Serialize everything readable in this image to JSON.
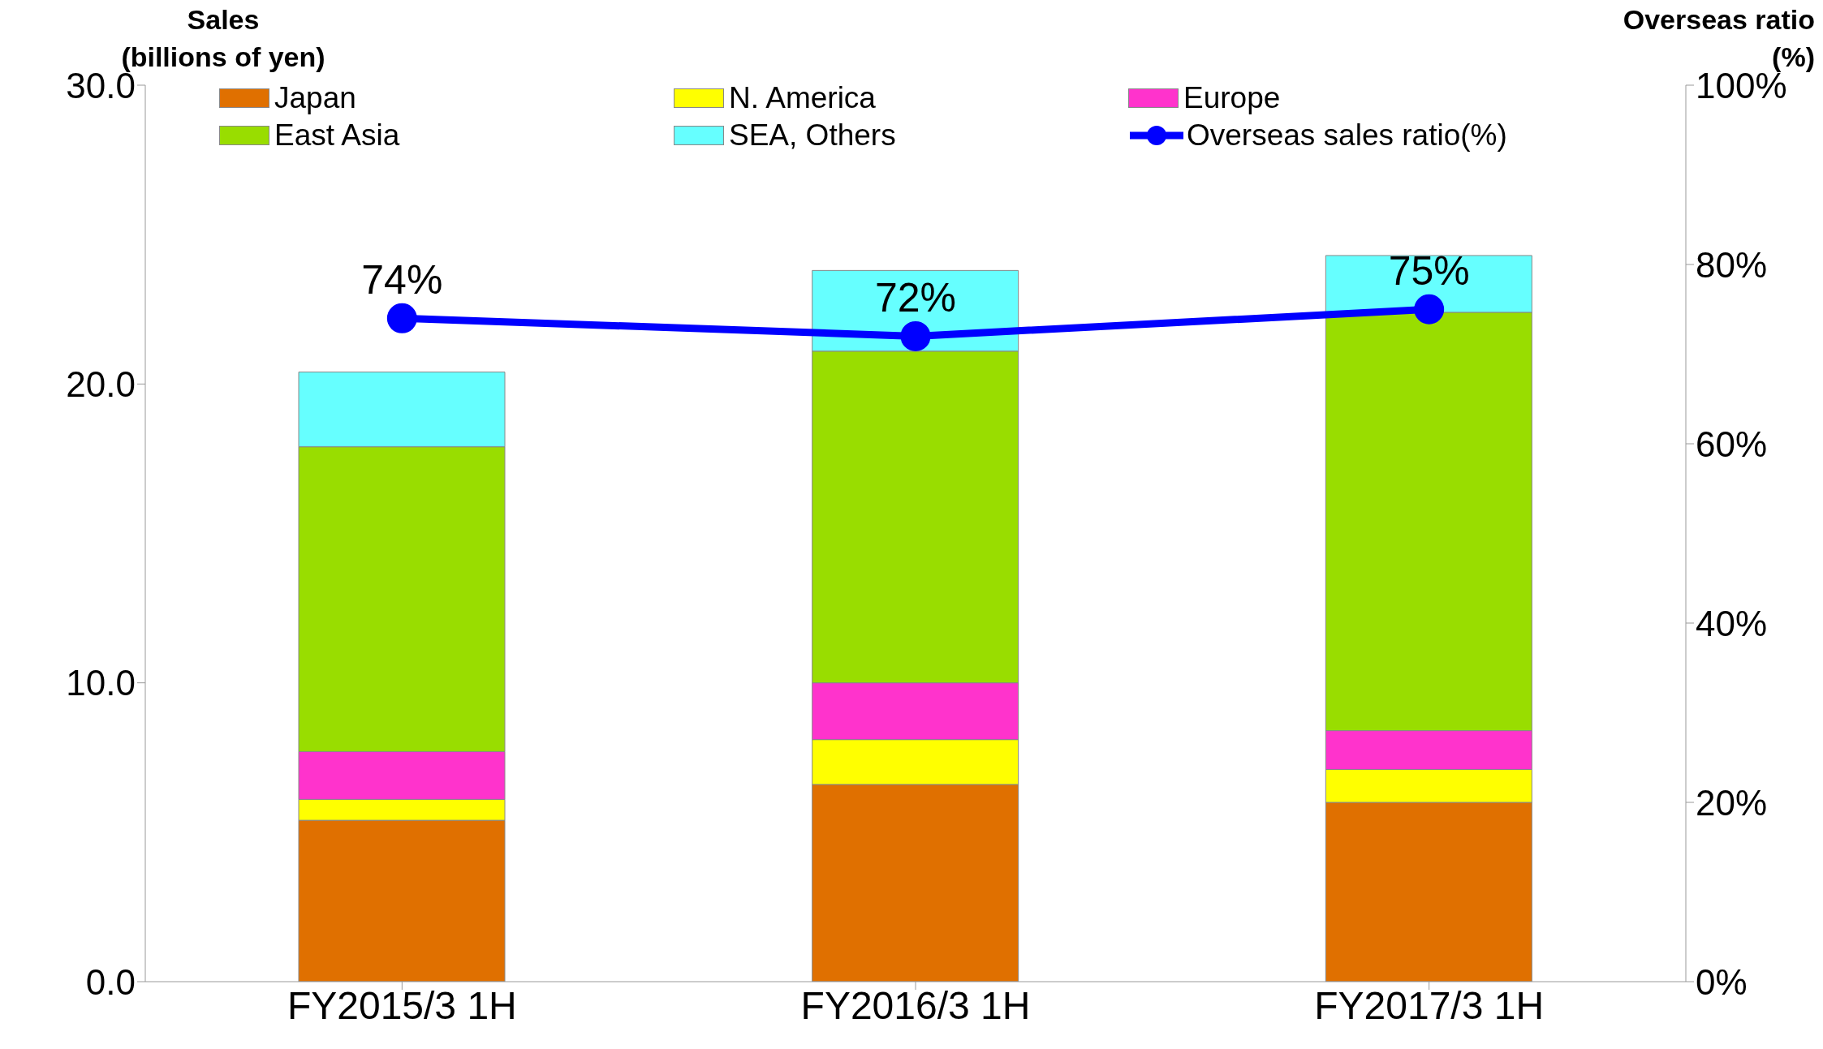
{
  "chart_data": {
    "type": "bar",
    "stacked": true,
    "categories": [
      "FY2015/3 1H",
      "FY2016/3 1H",
      "FY2017/3 1H"
    ],
    "ylabel": "Sales\n(billions of yen)",
    "y2label": "Overseas ratio\n(%)",
    "ylim": [
      0,
      30
    ],
    "yticks": [
      {
        "value": 0,
        "label": "0.0"
      },
      {
        "value": 10,
        "label": "10.0"
      },
      {
        "value": 20,
        "label": "20.0"
      },
      {
        "value": 30,
        "label": "30.0"
      }
    ],
    "y2lim": [
      0,
      100
    ],
    "y2ticks": [
      {
        "value": 0,
        "label": "0%"
      },
      {
        "value": 20,
        "label": "20%"
      },
      {
        "value": 40,
        "label": "40%"
      },
      {
        "value": 60,
        "label": "60%"
      },
      {
        "value": 80,
        "label": "80%"
      },
      {
        "value": 100,
        "label": "100%"
      }
    ],
    "series": [
      {
        "name": "Japan",
        "color": "#e07000",
        "values": [
          5.4,
          6.6,
          6.0
        ]
      },
      {
        "name": "N. America",
        "color": "#ffff00",
        "values": [
          0.7,
          1.5,
          1.1
        ]
      },
      {
        "name": "Europe",
        "color": "#ff33cc",
        "values": [
          1.6,
          1.9,
          1.3
        ]
      },
      {
        "name": "East Asia",
        "color": "#99dd00",
        "values": [
          10.2,
          11.1,
          14.0
        ]
      },
      {
        "name": "SEA, Others",
        "color": "#66ffff",
        "values": [
          2.5,
          2.7,
          1.9
        ]
      },
      {
        "name": "Overseas sales ratio(%)",
        "type": "line",
        "axis": "y2",
        "color": "#0000ff",
        "values": [
          74,
          72,
          75
        ],
        "value_labels": [
          "74%",
          "72%",
          "75%"
        ]
      }
    ],
    "marker": "circle",
    "grid": false,
    "legend": "top"
  }
}
